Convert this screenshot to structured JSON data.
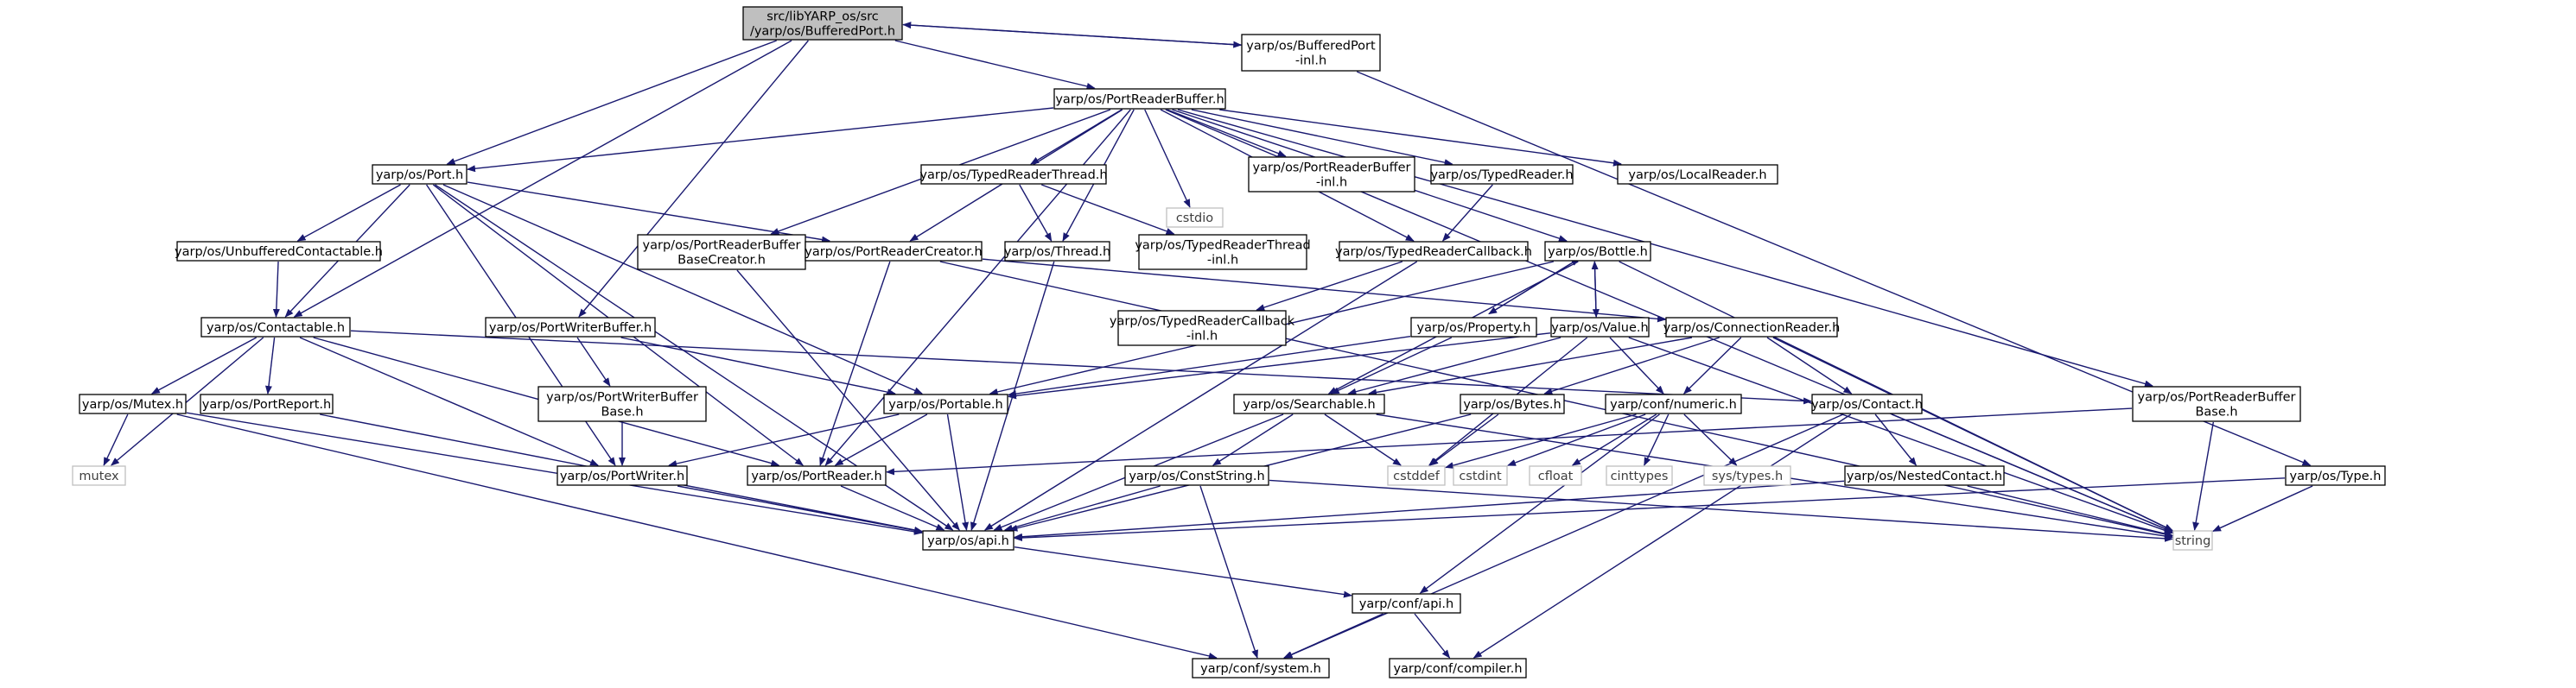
{
  "colors": {
    "node_border": "#000000",
    "system_border": "#bfbfbf",
    "root_fill": "#bfbfbf",
    "node_fill": "#ffffff",
    "edge": "#191970",
    "system_text": "#3f3f3f"
  },
  "nodes": [
    {
      "id": "root",
      "lines": [
        "src/libYARP_os/src",
        "/yarp/os/BufferedPort.h"
      ],
      "kind": "root"
    },
    {
      "id": "bp_inl",
      "lines": [
        "yarp/os/BufferedPort",
        "-inl.h"
      ],
      "kind": "header"
    },
    {
      "id": "prb",
      "lines": [
        "yarp/os/PortReaderBuffer.h"
      ],
      "kind": "header"
    },
    {
      "id": "port",
      "lines": [
        "yarp/os/Port.h"
      ],
      "kind": "header"
    },
    {
      "id": "trt",
      "lines": [
        "yarp/os/TypedReaderThread.h"
      ],
      "kind": "header"
    },
    {
      "id": "cstdio",
      "lines": [
        "cstdio"
      ],
      "kind": "system"
    },
    {
      "id": "prb_inl",
      "lines": [
        "yarp/os/PortReaderBuffer",
        "-inl.h"
      ],
      "kind": "header"
    },
    {
      "id": "tr",
      "lines": [
        "yarp/os/TypedReader.h"
      ],
      "kind": "header"
    },
    {
      "id": "lr",
      "lines": [
        "yarp/os/LocalReader.h"
      ],
      "kind": "header"
    },
    {
      "id": "uc",
      "lines": [
        "yarp/os/UnbufferedContactable.h"
      ],
      "kind": "header"
    },
    {
      "id": "prbbc",
      "lines": [
        "yarp/os/PortReaderBuffer",
        "BaseCreator.h"
      ],
      "kind": "header"
    },
    {
      "id": "prc",
      "lines": [
        "yarp/os/PortReaderCreator.h"
      ],
      "kind": "header"
    },
    {
      "id": "thread",
      "lines": [
        "yarp/os/Thread.h"
      ],
      "kind": "header"
    },
    {
      "id": "trt_inl",
      "lines": [
        "yarp/os/TypedReaderThread",
        "-inl.h"
      ],
      "kind": "header"
    },
    {
      "id": "trc",
      "lines": [
        "yarp/os/TypedReaderCallback.h"
      ],
      "kind": "header"
    },
    {
      "id": "bottle",
      "lines": [
        "yarp/os/Bottle.h"
      ],
      "kind": "header"
    },
    {
      "id": "contactable",
      "lines": [
        "yarp/os/Contactable.h"
      ],
      "kind": "header"
    },
    {
      "id": "pwb",
      "lines": [
        "yarp/os/PortWriterBuffer.h"
      ],
      "kind": "header"
    },
    {
      "id": "trc_inl",
      "lines": [
        "yarp/os/TypedReaderCallback",
        "-inl.h"
      ],
      "kind": "header"
    },
    {
      "id": "property",
      "lines": [
        "yarp/os/Property.h"
      ],
      "kind": "header"
    },
    {
      "id": "value",
      "lines": [
        "yarp/os/Value.h"
      ],
      "kind": "header"
    },
    {
      "id": "cr",
      "lines": [
        "yarp/os/ConnectionReader.h"
      ],
      "kind": "header"
    },
    {
      "id": "mutex_h",
      "lines": [
        "yarp/os/Mutex.h"
      ],
      "kind": "header"
    },
    {
      "id": "preport",
      "lines": [
        "yarp/os/PortReport.h"
      ],
      "kind": "header"
    },
    {
      "id": "pwbb",
      "lines": [
        "yarp/os/PortWriterBuffer",
        "Base.h"
      ],
      "kind": "header"
    },
    {
      "id": "portable",
      "lines": [
        "yarp/os/Portable.h"
      ],
      "kind": "header"
    },
    {
      "id": "searchable",
      "lines": [
        "yarp/os/Searchable.h"
      ],
      "kind": "header"
    },
    {
      "id": "bytes",
      "lines": [
        "yarp/os/Bytes.h"
      ],
      "kind": "header"
    },
    {
      "id": "numeric",
      "lines": [
        "yarp/conf/numeric.h"
      ],
      "kind": "header"
    },
    {
      "id": "contact",
      "lines": [
        "yarp/os/Contact.h"
      ],
      "kind": "header"
    },
    {
      "id": "prbb",
      "lines": [
        "yarp/os/PortReaderBuffer",
        "Base.h"
      ],
      "kind": "header"
    },
    {
      "id": "mutex",
      "lines": [
        "mutex"
      ],
      "kind": "system"
    },
    {
      "id": "pwriter",
      "lines": [
        "yarp/os/PortWriter.h"
      ],
      "kind": "header"
    },
    {
      "id": "preader",
      "lines": [
        "yarp/os/PortReader.h"
      ],
      "kind": "header"
    },
    {
      "id": "cstring",
      "lines": [
        "yarp/os/ConstString.h"
      ],
      "kind": "header"
    },
    {
      "id": "cstddef",
      "lines": [
        "cstddef"
      ],
      "kind": "system"
    },
    {
      "id": "cstdint",
      "lines": [
        "cstdint"
      ],
      "kind": "system"
    },
    {
      "id": "cfloat",
      "lines": [
        "cfloat"
      ],
      "kind": "system"
    },
    {
      "id": "cinttypes",
      "lines": [
        "cinttypes"
      ],
      "kind": "system"
    },
    {
      "id": "systypes",
      "lines": [
        "sys/types.h"
      ],
      "kind": "system"
    },
    {
      "id": "nested",
      "lines": [
        "yarp/os/NestedContact.h"
      ],
      "kind": "header"
    },
    {
      "id": "type",
      "lines": [
        "yarp/os/Type.h"
      ],
      "kind": "header"
    },
    {
      "id": "api",
      "lines": [
        "yarp/os/api.h"
      ],
      "kind": "header"
    },
    {
      "id": "string",
      "lines": [
        "string"
      ],
      "kind": "system"
    },
    {
      "id": "conf_api",
      "lines": [
        "yarp/conf/api.h"
      ],
      "kind": "header"
    },
    {
      "id": "system",
      "lines": [
        "yarp/conf/system.h"
      ],
      "kind": "header"
    },
    {
      "id": "compiler",
      "lines": [
        "yarp/conf/compiler.h"
      ],
      "kind": "header"
    }
  ],
  "edges": [
    [
      "root",
      "prb"
    ],
    [
      "root",
      "bp_inl"
    ],
    [
      "bp_inl",
      "root"
    ],
    [
      "root",
      "port"
    ],
    [
      "root",
      "contactable"
    ],
    [
      "root",
      "pwb"
    ],
    [
      "bp_inl",
      "type"
    ],
    [
      "prb",
      "port"
    ],
    [
      "prb",
      "trt"
    ],
    [
      "prb",
      "cstdio"
    ],
    [
      "prb",
      "prb_inl"
    ],
    [
      "prb",
      "tr"
    ],
    [
      "prb",
      "lr"
    ],
    [
      "prb",
      "prbbc"
    ],
    [
      "prb",
      "prc"
    ],
    [
      "prb",
      "thread"
    ],
    [
      "prb",
      "trc"
    ],
    [
      "prb",
      "bottle"
    ],
    [
      "prb",
      "preader"
    ],
    [
      "prb",
      "prbb"
    ],
    [
      "prb",
      "string"
    ],
    [
      "port",
      "uc"
    ],
    [
      "port",
      "contactable"
    ],
    [
      "port",
      "prc"
    ],
    [
      "port",
      "portable"
    ],
    [
      "port",
      "pwriter"
    ],
    [
      "port",
      "preader"
    ],
    [
      "port",
      "api"
    ],
    [
      "uc",
      "contactable"
    ],
    [
      "trt",
      "thread"
    ],
    [
      "trt",
      "trt_inl"
    ],
    [
      "tr",
      "trc"
    ],
    [
      "trc",
      "trc_inl"
    ],
    [
      "trc",
      "api"
    ],
    [
      "prbbc",
      "api"
    ],
    [
      "prc",
      "preader"
    ],
    [
      "prc",
      "cr"
    ],
    [
      "prc",
      "string"
    ],
    [
      "thread",
      "api"
    ],
    [
      "bottle",
      "value"
    ],
    [
      "bottle",
      "property"
    ],
    [
      "bottle",
      "portable"
    ],
    [
      "bottle",
      "searchable"
    ],
    [
      "bottle",
      "string"
    ],
    [
      "property",
      "bottle"
    ],
    [
      "property",
      "portable"
    ],
    [
      "property",
      "searchable"
    ],
    [
      "value",
      "bottle"
    ],
    [
      "value",
      "portable"
    ],
    [
      "value",
      "searchable"
    ],
    [
      "value",
      "numeric"
    ],
    [
      "value",
      "cstddef"
    ],
    [
      "value",
      "string"
    ],
    [
      "contactable",
      "mutex_h"
    ],
    [
      "contactable",
      "preport"
    ],
    [
      "contactable",
      "pwriter"
    ],
    [
      "contactable",
      "preader"
    ],
    [
      "contactable",
      "contact"
    ],
    [
      "contactable",
      "mutex"
    ],
    [
      "pwb",
      "pwbb"
    ],
    [
      "pwb",
      "portable"
    ],
    [
      "pwbb",
      "pwriter"
    ],
    [
      "cr",
      "bytes"
    ],
    [
      "cr",
      "numeric"
    ],
    [
      "cr",
      "contact"
    ],
    [
      "cr",
      "string"
    ],
    [
      "cr",
      "searchable"
    ],
    [
      "mutex_h",
      "mutex"
    ],
    [
      "mutex_h",
      "api"
    ],
    [
      "mutex_h",
      "system"
    ],
    [
      "preport",
      "api"
    ],
    [
      "portable",
      "pwriter"
    ],
    [
      "portable",
      "preader"
    ],
    [
      "portable",
      "api"
    ],
    [
      "searchable",
      "cstring"
    ],
    [
      "searchable",
      "cstddef"
    ],
    [
      "searchable",
      "api"
    ],
    [
      "searchable",
      "string"
    ],
    [
      "bytes",
      "cstddef"
    ],
    [
      "bytes",
      "api"
    ],
    [
      "numeric",
      "cstddef"
    ],
    [
      "numeric",
      "cstdint"
    ],
    [
      "numeric",
      "cfloat"
    ],
    [
      "numeric",
      "cinttypes"
    ],
    [
      "numeric",
      "systypes"
    ],
    [
      "numeric",
      "conf_api"
    ],
    [
      "contact",
      "nested"
    ],
    [
      "contact",
      "string"
    ],
    [
      "contact",
      "system"
    ],
    [
      "contact",
      "compiler"
    ],
    [
      "prbb",
      "preader"
    ],
    [
      "prbb",
      "string"
    ],
    [
      "pwriter",
      "api"
    ],
    [
      "preader",
      "api"
    ],
    [
      "cstring",
      "api"
    ],
    [
      "cstring",
      "string"
    ],
    [
      "cstring",
      "system"
    ],
    [
      "nested",
      "api"
    ],
    [
      "nested",
      "string"
    ],
    [
      "type",
      "api"
    ],
    [
      "type",
      "string"
    ],
    [
      "api",
      "conf_api"
    ],
    [
      "conf_api",
      "system"
    ],
    [
      "conf_api",
      "compiler"
    ]
  ]
}
